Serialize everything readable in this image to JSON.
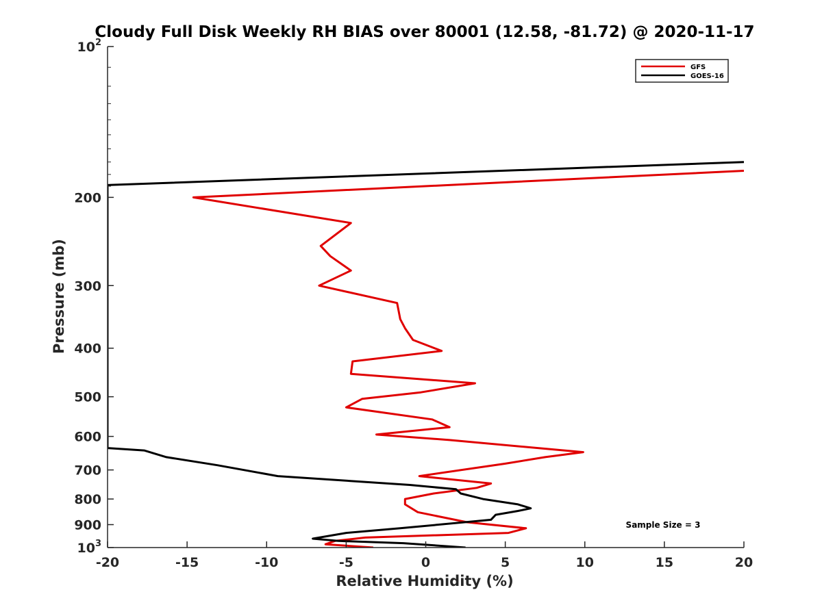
{
  "chart_data": {
    "type": "line",
    "title": "Cloudy Full Disk Weekly RH BIAS over 80001 (12.58, -81.72) @ 2020-11-17",
    "xlabel": "Relative Humidity (%)",
    "ylabel": "Pressure (mb)",
    "xlim": [
      -20,
      20
    ],
    "ylim": [
      100,
      1000
    ],
    "y_scale": "log",
    "y_reversed": true,
    "grid": false,
    "legend_position": "top-right",
    "x_ticks": [
      "-20",
      "-15",
      "-10",
      "-5",
      "0",
      "5",
      "10",
      "15",
      "20"
    ],
    "y_ticks": [
      {
        "value": 100,
        "base": "10",
        "exp": "2"
      },
      {
        "value": 200,
        "label": "200"
      },
      {
        "value": 300,
        "label": "300"
      },
      {
        "value": 400,
        "label": "400"
      },
      {
        "value": 500,
        "label": "500"
      },
      {
        "value": 600,
        "label": "600"
      },
      {
        "value": 700,
        "label": "700"
      },
      {
        "value": 800,
        "label": "800"
      },
      {
        "value": 900,
        "label": "900"
      },
      {
        "value": 1000,
        "base": "10",
        "exp": "3"
      }
    ],
    "annotation": "Sample Size = 3",
    "series": [
      {
        "name": "GFS",
        "color": "#e00000",
        "points": [
          [
            20,
            177
          ],
          [
            -14.6,
            200
          ],
          [
            -4.7,
            225
          ],
          [
            -6.6,
            250
          ],
          [
            -6,
            262
          ],
          [
            -4.7,
            280
          ],
          [
            -6.7,
            300
          ],
          [
            -1.8,
            325
          ],
          [
            -1.6,
            350
          ],
          [
            -1.3,
            365
          ],
          [
            -0.8,
            385
          ],
          [
            1,
            405
          ],
          [
            -4.6,
            425
          ],
          [
            -4.7,
            450
          ],
          [
            3.1,
            470
          ],
          [
            -0.3,
            490
          ],
          [
            -4,
            505
          ],
          [
            -5,
            525
          ],
          [
            0.4,
            555
          ],
          [
            1.5,
            575
          ],
          [
            -3.1,
            595
          ],
          [
            1.5,
            610
          ],
          [
            9.9,
            645
          ],
          [
            7.5,
            660
          ],
          [
            5,
            680
          ],
          [
            -0.4,
            720
          ],
          [
            4.1,
            745
          ],
          [
            3.2,
            760
          ],
          [
            0.5,
            780
          ],
          [
            -1.3,
            800
          ],
          [
            -1.3,
            820
          ],
          [
            -0.5,
            850
          ],
          [
            2.6,
            890
          ],
          [
            6.3,
            915
          ],
          [
            5.2,
            935
          ],
          [
            -3.8,
            955
          ],
          [
            -5.7,
            970
          ],
          [
            -6.3,
            985
          ],
          [
            -3.3,
            1000
          ]
        ]
      },
      {
        "name": "GOES-16",
        "color": "#000000",
        "points": [
          [
            20,
            170
          ],
          [
            -20,
            189
          ],
          [
            -20,
            633
          ],
          [
            -17.7,
            640
          ],
          [
            -16.3,
            660
          ],
          [
            -13.1,
            685
          ],
          [
            -9.3,
            720
          ],
          [
            -1,
            750
          ],
          [
            1.9,
            765
          ],
          [
            2.2,
            780
          ],
          [
            3.6,
            800
          ],
          [
            5.8,
            820
          ],
          [
            6.6,
            835
          ],
          [
            5.8,
            845
          ],
          [
            4.4,
            860
          ],
          [
            4.1,
            880
          ],
          [
            -1.6,
            915
          ],
          [
            -5,
            935
          ],
          [
            -7.1,
            960
          ],
          [
            -5.5,
            970
          ],
          [
            -1.4,
            980
          ],
          [
            2.5,
            1000
          ]
        ]
      }
    ]
  }
}
